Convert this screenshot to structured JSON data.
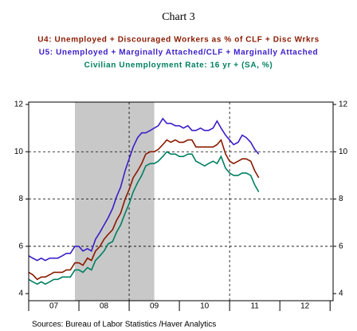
{
  "chart_data": {
    "type": "line",
    "title": "Chart 3",
    "source": "Sources:  Bureau of Labor Statistics /Haver Analytics",
    "x": [
      2007,
      2007.08,
      2007.17,
      2007.25,
      2007.33,
      2007.42,
      2007.5,
      2007.58,
      2007.67,
      2007.75,
      2007.83,
      2007.92,
      2008,
      2008.08,
      2008.17,
      2008.25,
      2008.33,
      2008.42,
      2008.5,
      2008.58,
      2008.67,
      2008.75,
      2008.83,
      2008.92,
      2009,
      2009.08,
      2009.17,
      2009.25,
      2009.33,
      2009.42,
      2009.5,
      2009.58,
      2009.67,
      2009.75,
      2009.83,
      2009.92,
      2010,
      2010.08,
      2010.17,
      2010.25,
      2010.33,
      2010.42,
      2010.5,
      2010.58,
      2010.67,
      2010.75,
      2010.83,
      2010.92,
      2011,
      2011.08,
      2011.17,
      2011.25,
      2011.33,
      2011.42,
      2011.5,
      2011.58
    ],
    "series": [
      {
        "name": "U4: Unemployed + Discouraged Workers as % of CLF + Disc Wrkrs",
        "color": "#8b1a00",
        "values": [
          4.9,
          4.8,
          4.6,
          4.7,
          4.7,
          4.8,
          4.9,
          4.9,
          4.9,
          5.0,
          5.0,
          5.3,
          5.3,
          5.2,
          5.5,
          5.4,
          5.8,
          6.0,
          6.3,
          6.5,
          6.7,
          7.1,
          7.4,
          8.0,
          8.4,
          8.9,
          9.2,
          9.5,
          9.9,
          10.0,
          10.0,
          10.1,
          10.3,
          10.5,
          10.4,
          10.5,
          10.4,
          10.4,
          10.5,
          10.5,
          10.2,
          10.2,
          10.2,
          10.2,
          10.2,
          10.3,
          10.5,
          9.9,
          9.6,
          9.5,
          9.6,
          9.7,
          9.7,
          9.6,
          9.2,
          8.9
        ]
      },
      {
        "name": "U5:  Unemployed + Marginally Attached/CLF + Marginally Attached",
        "color": "#3a1fc8",
        "values": [
          5.6,
          5.5,
          5.4,
          5.5,
          5.4,
          5.5,
          5.5,
          5.5,
          5.6,
          5.7,
          5.7,
          6.0,
          6.0,
          5.8,
          5.9,
          5.8,
          6.3,
          6.6,
          6.9,
          7.2,
          7.6,
          8.1,
          8.5,
          9.2,
          9.7,
          10.2,
          10.6,
          10.8,
          10.8,
          10.9,
          11.0,
          11.1,
          11.4,
          11.2,
          11.2,
          11.1,
          11.1,
          11.0,
          11.1,
          10.9,
          10.9,
          11.0,
          10.9,
          10.9,
          11.0,
          11.3,
          11.0,
          10.7,
          10.5,
          10.3,
          10.4,
          10.7,
          10.6,
          10.4,
          10.1,
          9.9
        ]
      },
      {
        "name": "Civilian Unemployment Rate: 16 yr + (SA, %)",
        "color": "#008060",
        "values": [
          4.6,
          4.5,
          4.4,
          4.5,
          4.4,
          4.5,
          4.6,
          4.6,
          4.7,
          4.7,
          4.7,
          5.0,
          5.0,
          4.9,
          5.1,
          5.0,
          5.4,
          5.6,
          5.8,
          6.1,
          6.2,
          6.6,
          6.9,
          7.4,
          7.8,
          8.3,
          8.7,
          9.0,
          9.4,
          9.5,
          9.5,
          9.6,
          9.8,
          10.0,
          9.9,
          9.9,
          9.8,
          9.8,
          9.9,
          9.9,
          9.6,
          9.5,
          9.4,
          9.5,
          9.6,
          9.5,
          9.8,
          9.3,
          9.1,
          9.0,
          9.0,
          9.1,
          9.1,
          9.0,
          8.6,
          8.3
        ]
      }
    ],
    "xlim": [
      2007,
      2013.06
    ],
    "xticks": [
      2007,
      2008,
      2009,
      2010,
      2011,
      2012,
      2013
    ],
    "xlabels": [
      {
        "value": 2007.5,
        "label": "07"
      },
      {
        "value": 2008.5,
        "label": "08"
      },
      {
        "value": 2009.5,
        "label": "09"
      },
      {
        "value": 2010.5,
        "label": "10"
      },
      {
        "value": 2011.5,
        "label": "11"
      },
      {
        "value": 2012.5,
        "label": "12"
      }
    ],
    "xgrid": [
      2009,
      2011
    ],
    "ylim": [
      3.7,
      12.1
    ],
    "yticks": [
      4,
      6,
      8,
      10,
      12
    ],
    "y2lim": [
      3.7,
      12.1
    ],
    "y2ticks": [
      4,
      6,
      8,
      10,
      12
    ],
    "grid": true,
    "shade": [
      2007.92,
      2009.5
    ],
    "shade_color": "#c8c8c8"
  }
}
